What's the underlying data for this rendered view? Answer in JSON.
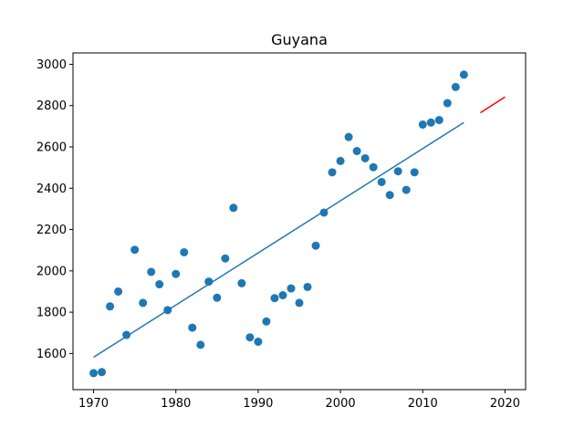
{
  "chart_data": {
    "type": "scatter",
    "title": "Guyana",
    "xlabel": "",
    "ylabel": "",
    "xlim": [
      1967.5,
      2022.5
    ],
    "ylim": [
      1425,
      3055
    ],
    "x_ticks": [
      1970,
      1980,
      1990,
      2000,
      2010,
      2020
    ],
    "y_ticks": [
      1600,
      1800,
      2000,
      2200,
      2400,
      2600,
      2800,
      3000
    ],
    "grid": false,
    "legend": null,
    "series": [
      {
        "kind": "scatter",
        "color": "#1f77b4",
        "points": [
          [
            1970,
            1505
          ],
          [
            1971,
            1510
          ],
          [
            1972,
            1828
          ],
          [
            1973,
            1900
          ],
          [
            1974,
            1690
          ],
          [
            1975,
            2102
          ],
          [
            1976,
            1845
          ],
          [
            1977,
            1995
          ],
          [
            1978,
            1935
          ],
          [
            1979,
            1810
          ],
          [
            1980,
            1985
          ],
          [
            1981,
            2090
          ],
          [
            1982,
            1725
          ],
          [
            1983,
            1642
          ],
          [
            1984,
            1948
          ],
          [
            1985,
            1870
          ],
          [
            1986,
            2060
          ],
          [
            1987,
            2305
          ],
          [
            1988,
            1940
          ],
          [
            1989,
            1678
          ],
          [
            1990,
            1657
          ],
          [
            1991,
            1755
          ],
          [
            1992,
            1868
          ],
          [
            1993,
            1882
          ],
          [
            1994,
            1915
          ],
          [
            1995,
            1845
          ],
          [
            1996,
            1922
          ],
          [
            1997,
            2122
          ],
          [
            1998,
            2282
          ],
          [
            1999,
            2477
          ],
          [
            2000,
            2532
          ],
          [
            2001,
            2648
          ],
          [
            2002,
            2580
          ],
          [
            2003,
            2545
          ],
          [
            2004,
            2502
          ],
          [
            2005,
            2430
          ],
          [
            2006,
            2367
          ],
          [
            2007,
            2482
          ],
          [
            2008,
            2392
          ],
          [
            2009,
            2477
          ],
          [
            2010,
            2708
          ],
          [
            2011,
            2718
          ],
          [
            2012,
            2730
          ],
          [
            2013,
            2812
          ],
          [
            2014,
            2890
          ],
          [
            2015,
            2950
          ]
        ]
      },
      {
        "kind": "line",
        "color": "#1f77b4",
        "points": [
          [
            1970,
            1582
          ],
          [
            2015,
            2718
          ]
        ]
      },
      {
        "kind": "line",
        "color": "#ff0000",
        "points": [
          [
            2017,
            2765
          ],
          [
            2020,
            2842
          ]
        ]
      }
    ]
  }
}
